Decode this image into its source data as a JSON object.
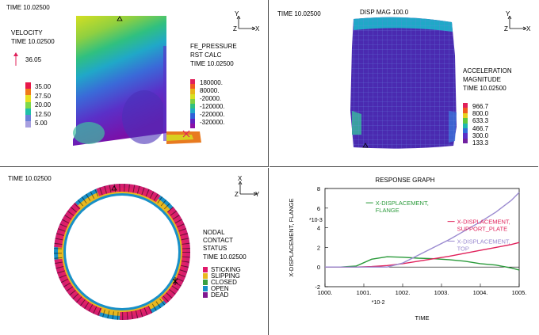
{
  "panel1": {
    "time": "TIME 10.02500",
    "velocity_title": "VELOCITY",
    "velocity_time": "TIME 10.02500",
    "velocity_ref": "36.05",
    "velocity_scale": [
      "35.00",
      "27.50",
      "20.00",
      "12.50",
      "5.00"
    ],
    "velocity_colors": [
      "#e8184a",
      "#f07a1a",
      "#e8e020",
      "#7fd84a",
      "#20c0a8",
      "#6a80d8",
      "#a8a0e0"
    ],
    "fe_title": "FE_PRESSURE",
    "fe_calc": "RST CALC",
    "fe_time": "TIME 10.02500",
    "pressure_scale": [
      "180000.",
      "80000.",
      "-20000.",
      "-120000.",
      "-220000.",
      "-320000."
    ],
    "pressure_colors": [
      "#e0205a",
      "#f05a20",
      "#e8b418",
      "#d8e020",
      "#80d040",
      "#30c080",
      "#20a8c8",
      "#3060d8",
      "#6020c0",
      "#8a10a8"
    ],
    "axis_y": "Y",
    "axis_z": "Z",
    "axis_x": "X"
  },
  "panel2": {
    "time": "TIME 10.02500",
    "disp": "DISP MAG 100.0",
    "accel_title_1": "ACCELERATION",
    "accel_title_2": "MAGNITUDE",
    "accel_time": "TIME 10.02500",
    "accel_scale": [
      "966.7",
      "800.0",
      "633.3",
      "466.7",
      "300.0",
      "133.3"
    ],
    "accel_colors": [
      "#e0205a",
      "#f05a20",
      "#e8d020",
      "#60c840",
      "#20b8b0",
      "#3070d8",
      "#5a30c8",
      "#7020a0"
    ],
    "axis_y": "Y",
    "axis_z": "Z",
    "axis_x": "X"
  },
  "panel3": {
    "time": "TIME 10.02500",
    "status_1": "NODAL",
    "status_2": "CONTACT",
    "status_3": "STATUS",
    "status_time": "TIME 10.02500",
    "legend": [
      {
        "label": "STICKING",
        "color": "#e0186a"
      },
      {
        "label": "SLIPPING",
        "color": "#e8b820"
      },
      {
        "label": "CLOSED",
        "color": "#3aa040"
      },
      {
        "label": "OPEN",
        "color": "#1890c8"
      },
      {
        "label": "DEAD",
        "color": "#801890"
      }
    ],
    "axis_x": "X",
    "axis_z": "Z",
    "axis_y": "Y"
  },
  "panel4": {
    "title": "RESPONSE GRAPH",
    "chart_data": {
      "type": "line",
      "title": "RESPONSE GRAPH",
      "xlabel": "TIME",
      "ylabel": "X-DISPLACEMENT, FLANGE",
      "x_multiplier": "*10-2",
      "y_multiplier": "*10-3",
      "xlim": [
        1000,
        1005
      ],
      "ylim": [
        -2,
        8
      ],
      "x_ticks": [
        "1000.",
        "1001.",
        "1002.",
        "1003.",
        "1004.",
        "1005."
      ],
      "y_ticks": [
        "-2",
        "0",
        "2",
        "4",
        "6",
        "8"
      ],
      "series": [
        {
          "name_1": "X-DISPLACEMENT,",
          "name_2": "FLANGE",
          "color": "#2a9a3a",
          "x": [
            1000,
            1000.4,
            1000.8,
            1001.2,
            1001.6,
            1002.0,
            1002.4,
            1002.8,
            1003.2,
            1003.6,
            1004.0,
            1004.4,
            1004.8,
            1005
          ],
          "y": [
            0,
            0,
            0.1,
            0.8,
            1.05,
            1.0,
            0.9,
            0.85,
            0.75,
            0.6,
            0.35,
            0.2,
            -0.1,
            -0.3
          ]
        },
        {
          "name_1": "X-DISPLACEMENT,",
          "name_2": "SUPPORT_PLATE",
          "color": "#e0205a",
          "x": [
            1000,
            1000.4,
            1000.8,
            1001.2,
            1001.6,
            1002.0,
            1002.4,
            1002.8,
            1003.2,
            1003.6,
            1004.0,
            1004.4,
            1004.8,
            1005
          ],
          "y": [
            0,
            0,
            0,
            0.05,
            0.15,
            0.35,
            0.6,
            0.85,
            1.1,
            1.4,
            1.7,
            2.0,
            2.3,
            2.5
          ]
        },
        {
          "name_1": "X-DISPLACEMENT,",
          "name_2": "TOP",
          "color": "#9a8ad0",
          "x": [
            1000,
            1000.4,
            1000.8,
            1001.2,
            1001.6,
            1002.0,
            1002.4,
            1002.8,
            1003.2,
            1003.6,
            1004.0,
            1004.4,
            1004.8,
            1005
          ],
          "y": [
            0,
            0,
            0,
            0,
            0,
            0.4,
            1.2,
            2.0,
            2.8,
            3.7,
            4.6,
            5.6,
            6.8,
            7.6
          ]
        }
      ]
    }
  }
}
